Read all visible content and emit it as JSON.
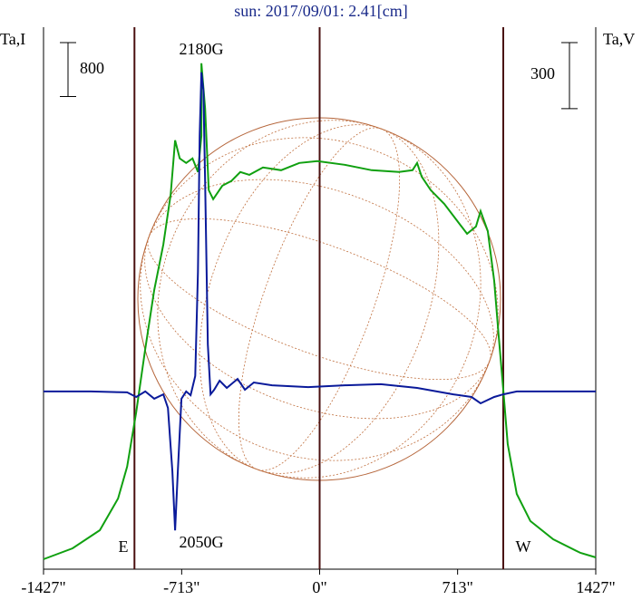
{
  "chart_data": {
    "type": "line",
    "title": "sun: 2017/09/01: 2.41[cm]",
    "y_label": "Ta,I",
    "y2_label": "Ta,V",
    "xlim": [
      -1427,
      1427
    ],
    "xticks": [
      {
        "value": -1427,
        "label": "-1427\""
      },
      {
        "value": -713,
        "label": "-713\""
      },
      {
        "value": 0,
        "label": "0\""
      },
      {
        "value": 713,
        "label": "713\""
      },
      {
        "value": 1427,
        "label": "1427\""
      }
    ],
    "ylim": [
      0,
      8000
    ],
    "y2lim": [
      -800,
      1650
    ],
    "y_scale_bar": 800,
    "y2_scale_bar": 300,
    "vlines": [
      -957,
      0,
      949
    ],
    "annotations": [
      "2180G",
      "2050G",
      "E",
      "W"
    ],
    "series": [
      {
        "name": "I",
        "color": "#10a010",
        "x": [
          -1427,
          -1277,
          -1136,
          -1042,
          -995,
          -948,
          -901,
          -855,
          -808,
          -770,
          -747,
          -723,
          -690,
          -657,
          -629,
          -611,
          -611,
          -592,
          -573,
          -550,
          -503,
          -457,
          -410,
          -363,
          -293,
          -199,
          -105,
          -12,
          129,
          269,
          410,
          480,
          504,
          527,
          574,
          644,
          715,
          762,
          808,
          832,
          869,
          902,
          925,
          949,
          972,
          1019,
          1089,
          1207,
          1348,
          1427
        ],
        "values": [
          108,
          269,
          538,
          1009,
          1480,
          2287,
          3228,
          4102,
          4775,
          5515,
          6322,
          6053,
          5986,
          6053,
          5851,
          6389,
          7465,
          6793,
          5582,
          5448,
          5649,
          5717,
          5851,
          5810,
          5918,
          5878,
          5986,
          6013,
          5959,
          5878,
          5851,
          5878,
          5986,
          5784,
          5582,
          5380,
          5111,
          4936,
          5044,
          5272,
          4977,
          4237,
          3430,
          2623,
          1816,
          1076,
          673,
          404,
          202,
          135
        ]
      },
      {
        "name": "V",
        "color": "#0a1a9a",
        "axis": "y2",
        "x": [
          -1427,
          -1183,
          -995,
          -948,
          -901,
          -855,
          -808,
          -784,
          -761,
          -747,
          -733,
          -714,
          -690,
          -667,
          -643,
          -629,
          -620,
          -611,
          -601,
          -592,
          -578,
          -564,
          -545,
          -517,
          -480,
          -424,
          -386,
          -340,
          -246,
          -59,
          129,
          316,
          504,
          691,
          785,
          832,
          902,
          949,
          1019,
          1427
        ],
        "values": [
          -5,
          -5,
          -9,
          -30,
          -5,
          -38,
          -18,
          -80,
          -368,
          -636,
          -368,
          -38,
          -5,
          -22,
          65,
          538,
          1156,
          1445,
          1363,
          950,
          209,
          -18,
          3,
          44,
          11,
          52,
          3,
          36,
          23,
          15,
          23,
          28,
          11,
          -18,
          -30,
          -59,
          -30,
          -18,
          -5,
          -5
        ]
      }
    ]
  }
}
